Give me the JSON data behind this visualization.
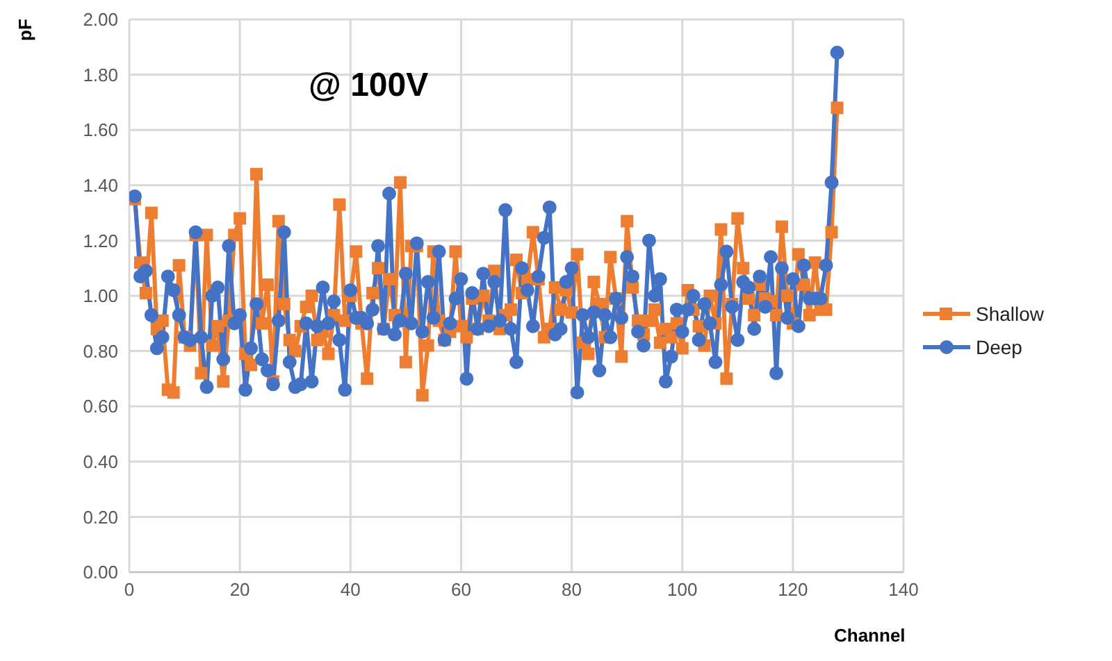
{
  "chart_data": {
    "type": "line",
    "xlabel": "Channel",
    "ylabel": "pF",
    "annotations": [
      "@ 100V"
    ],
    "x": [
      1,
      2,
      3,
      4,
      5,
      6,
      7,
      8,
      9,
      10,
      11,
      12,
      13,
      14,
      15,
      16,
      17,
      18,
      19,
      20,
      21,
      22,
      23,
      24,
      25,
      26,
      27,
      28,
      29,
      30,
      31,
      32,
      33,
      34,
      35,
      36,
      37,
      38,
      39,
      40,
      41,
      42,
      43,
      44,
      45,
      46,
      47,
      48,
      49,
      50,
      51,
      52,
      53,
      54,
      55,
      56,
      57,
      58,
      59,
      60,
      61,
      62,
      63,
      64,
      65,
      66,
      67,
      68,
      69,
      70,
      71,
      72,
      73,
      74,
      75,
      76,
      77,
      78,
      79,
      80,
      81,
      82,
      83,
      84,
      85,
      86,
      87,
      88,
      89,
      90,
      91,
      92,
      93,
      94,
      95,
      96,
      97,
      98,
      99,
      100,
      101,
      102,
      103,
      104,
      105,
      106,
      107,
      108,
      109,
      110,
      111,
      112,
      113,
      114,
      115,
      116,
      117,
      118,
      119,
      120,
      121,
      122,
      123,
      124,
      125,
      126,
      127,
      128
    ],
    "xlim": [
      0,
      140
    ],
    "xticks": [
      0,
      20,
      40,
      60,
      80,
      100,
      120,
      140
    ],
    "ylim": [
      0,
      2
    ],
    "yticks": [
      {
        "value": 0,
        "label": "0.00"
      },
      {
        "value": 0.2,
        "label": "0.20"
      },
      {
        "value": 0.4,
        "label": "0.40"
      },
      {
        "value": 0.6,
        "label": "0.60"
      },
      {
        "value": 0.8,
        "label": "0.80"
      },
      {
        "value": 1,
        "label": "1.00"
      },
      {
        "value": 1.2,
        "label": "1.20"
      },
      {
        "value": 1.4,
        "label": "1.40"
      },
      {
        "value": 1.6,
        "label": "1.60"
      },
      {
        "value": 1.8,
        "label": "1.80"
      },
      {
        "value": 2,
        "label": "2.00"
      }
    ],
    "grid": true,
    "legend": "right",
    "series": [
      {
        "name": "Shallow",
        "color": "#ed7d31",
        "marker": "square",
        "values": [
          1.35,
          1.12,
          1.01,
          1.3,
          0.88,
          0.91,
          0.66,
          0.65,
          1.11,
          0.85,
          0.82,
          1.22,
          0.72,
          1.22,
          0.82,
          0.89,
          0.69,
          0.91,
          1.22,
          1.28,
          0.79,
          0.75,
          1.44,
          0.9,
          1.04,
          0.69,
          1.27,
          0.97,
          0.84,
          0.8,
          0.89,
          0.96,
          1.0,
          0.84,
          0.87,
          0.79,
          0.93,
          1.33,
          0.91,
          1.0,
          1.16,
          0.9,
          0.7,
          1.01,
          1.1,
          0.88,
          1.06,
          0.93,
          1.41,
          0.76,
          1.18,
          1.18,
          0.64,
          0.82,
          1.16,
          0.91,
          0.84,
          0.87,
          1.16,
          0.89,
          0.85,
          0.99,
          0.88,
          1.0,
          0.91,
          1.09,
          0.88,
          0.93,
          0.95,
          1.13,
          1.01,
          1.06,
          1.23,
          1.06,
          0.85,
          0.88,
          1.03,
          0.95,
          1.02,
          0.94,
          1.15,
          0.83,
          0.79,
          1.05,
          0.97,
          0.85,
          1.14,
          0.99,
          0.78,
          1.27,
          1.03,
          0.91,
          0.86,
          0.91,
          0.95,
          0.83,
          0.88,
          0.85,
          0.9,
          0.81,
          1.02,
          0.95,
          0.89,
          0.82,
          1.0,
          0.9,
          1.24,
          0.7,
          0.97,
          1.28,
          1.1,
          0.99,
          0.93,
          1.04,
          0.99,
          0.98,
          0.93,
          1.25,
          1.0,
          0.9,
          1.15,
          1.04,
          0.93,
          1.12,
          0.95,
          0.95,
          1.23,
          1.68
        ]
      },
      {
        "name": "Deep",
        "color": "#4472c4",
        "marker": "circle",
        "values": [
          1.36,
          1.07,
          1.09,
          0.93,
          0.81,
          0.85,
          1.07,
          1.02,
          0.93,
          0.85,
          0.84,
          1.23,
          0.85,
          0.67,
          1.0,
          1.03,
          0.77,
          1.18,
          0.9,
          0.93,
          0.66,
          0.81,
          0.97,
          0.77,
          0.73,
          0.68,
          0.91,
          1.23,
          0.76,
          0.67,
          0.68,
          0.9,
          0.69,
          0.89,
          1.03,
          0.9,
          0.98,
          0.84,
          0.66,
          1.02,
          0.92,
          0.92,
          0.9,
          0.95,
          1.18,
          0.88,
          1.37,
          0.86,
          0.91,
          1.08,
          0.9,
          1.19,
          0.87,
          1.05,
          0.92,
          1.16,
          0.84,
          0.9,
          0.99,
          1.06,
          0.7,
          1.01,
          0.88,
          1.08,
          0.89,
          1.05,
          0.91,
          1.31,
          0.88,
          0.76,
          1.1,
          1.02,
          0.89,
          1.07,
          1.21,
          1.32,
          0.86,
          0.88,
          1.05,
          1.1,
          0.65,
          0.93,
          0.85,
          0.94,
          0.73,
          0.93,
          0.85,
          0.99,
          0.92,
          1.14,
          1.07,
          0.87,
          0.82,
          1.2,
          1.0,
          1.06,
          0.69,
          0.78,
          0.95,
          0.87,
          0.95,
          1.0,
          0.84,
          0.97,
          0.9,
          0.76,
          1.04,
          1.16,
          0.96,
          0.84,
          1.05,
          1.03,
          0.88,
          1.07,
          0.96,
          1.14,
          0.72,
          1.1,
          0.92,
          1.06,
          0.89,
          1.11,
          0.99,
          0.99,
          0.99,
          1.11,
          1.41,
          1.88
        ]
      }
    ]
  }
}
